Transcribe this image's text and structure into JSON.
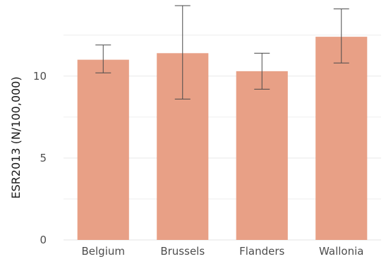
{
  "chart_data": {
    "type": "bar",
    "title": "",
    "xlabel": "",
    "ylabel": "ESR2013 (N/100,000)",
    "categories": [
      "Belgium",
      "Brussels",
      "Flanders",
      "Wallonia"
    ],
    "values": [
      11.0,
      11.4,
      10.3,
      12.4
    ],
    "error_low": [
      10.2,
      8.6,
      9.2,
      10.8
    ],
    "error_high": [
      11.9,
      14.3,
      11.4,
      14.1
    ],
    "ylim": [
      0,
      14.3
    ],
    "yticks": [
      0,
      5,
      10
    ],
    "ytick_labels": [
      "0",
      "5",
      "10"
    ],
    "grid": true,
    "legend": "none",
    "colors": {
      "bar": "#e8a086",
      "error_bar": "#4a4a4a",
      "grid": "#ebebeb"
    }
  }
}
